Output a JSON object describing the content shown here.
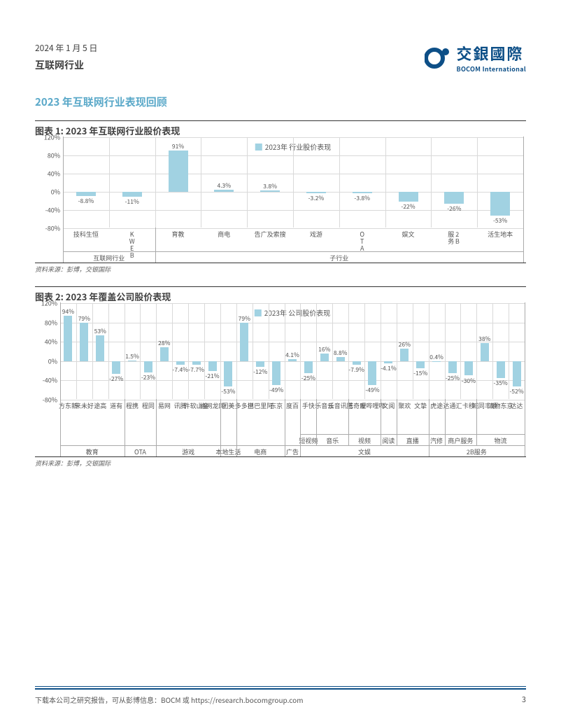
{
  "header": {
    "date": "2024 年 1 月 5 日",
    "industry": "互联网行业",
    "logo_cn": "交銀國際",
    "logo_en": "BOCOM International"
  },
  "section_heading": "2023 年互联网行业表现回顾",
  "chart1": {
    "title": "图表 1: 2023 年互联网行业股价表现",
    "legend": "2023年 行业股价表现",
    "source": "资料来源：彭博，交银国际",
    "ymin": -80,
    "ymax": 120,
    "ystep": 40,
    "y_ticks": [
      "120%",
      "80%",
      "40%",
      "0%",
      "-40%",
      "-80%"
    ],
    "bar_color": "#a1d2e2",
    "grid_color": "#d9d9d9",
    "categories": [
      "恒生科技",
      "KWEB",
      "教育",
      "电商",
      "搜索及广告",
      "游戏",
      "OTA",
      "文娱",
      "2B服务",
      "本地生活"
    ],
    "values": [
      -8.8,
      -11,
      91,
      4.3,
      3.8,
      -3.2,
      -3.8,
      -22,
      -26,
      -53
    ],
    "labels": [
      "-8.8%",
      "-11%",
      "91%",
      "4.3%",
      "3.8%",
      "-3.2%",
      "-3.8%",
      "-22%",
      "-26%",
      "-53%"
    ],
    "groups": [
      {
        "label": "互联网行业",
        "start": 0,
        "end": 2
      },
      {
        "label": "子行业",
        "start": 2,
        "end": 10
      }
    ]
  },
  "chart2": {
    "title": "图表 2: 2023 年覆盖公司股价表现",
    "legend": "2023年 公司股价表现",
    "source": "资料来源：彭博，交银国际",
    "ymin": -80,
    "ymax": 120,
    "ystep": 40,
    "y_ticks": [
      "120%",
      "80%",
      "40%",
      "0%",
      "-40%",
      "-80%"
    ],
    "bar_color": "#a1d2e2",
    "grid_color": "#d9d9d9",
    "categories": [
      "新东方",
      "好未来",
      "高途",
      "有道",
      "携程",
      "同程",
      "网易",
      "腾讯",
      "金山软件",
      "网龙网络",
      "美团",
      "拼多多",
      "阿里巴巴",
      "京东",
      "百度",
      "快手",
      "云音乐",
      "腾讯音乐",
      "爱奇艺",
      "哔哩哔哩",
      "阅文",
      "欢聚",
      "挚文",
      "途虎",
      "汇通达",
      "移卡",
      "顺丰同城",
      "京东物流",
      "达达"
    ],
    "values": [
      94,
      79,
      53,
      -27,
      1.5,
      -23,
      28,
      -7.4,
      -7.7,
      -21,
      -53,
      79,
      -12,
      -49,
      4.1,
      -25,
      16,
      8.8,
      -7.9,
      -49,
      -4.1,
      26,
      -15,
      0.4,
      -25,
      -30,
      38,
      -35,
      -52
    ],
    "labels": [
      "94%",
      "79%",
      "53%",
      "-27%",
      "1.5%",
      "-23%",
      "28%",
      "-7.4%",
      "-7.7%",
      "-21%",
      "-53%",
      "79%",
      "-12%",
      "-49%",
      "4.1%",
      "-25%",
      "16%",
      "8.8%",
      "-7.9%",
      "-49%",
      "-4.1%",
      "26%",
      "-15%",
      "0.4%",
      "-25%",
      "-30%",
      "38%",
      "-35%",
      "-52%"
    ],
    "subgroups": [
      {
        "label": "短视频",
        "start": 15,
        "end": 16
      },
      {
        "label": "音乐",
        "start": 16,
        "end": 18
      },
      {
        "label": "视频",
        "start": 18,
        "end": 20
      },
      {
        "label": "阅读",
        "start": 20,
        "end": 21
      },
      {
        "label": "直播",
        "start": 21,
        "end": 23
      },
      {
        "label": "汽修",
        "start": 23,
        "end": 24
      },
      {
        "label": "商户服务",
        "start": 24,
        "end": 26
      },
      {
        "label": "物流",
        "start": 26,
        "end": 29
      }
    ],
    "groups": [
      {
        "label": "教育",
        "start": 0,
        "end": 4
      },
      {
        "label": "OTA",
        "start": 4,
        "end": 6
      },
      {
        "label": "游戏",
        "start": 6,
        "end": 10
      },
      {
        "label": "本地生活",
        "start": 10,
        "end": 11
      },
      {
        "label": "电商",
        "start": 11,
        "end": 14
      },
      {
        "label": "广告",
        "start": 14,
        "end": 15
      },
      {
        "label": "文娱",
        "start": 15,
        "end": 23
      },
      {
        "label": "2B服务",
        "start": 23,
        "end": 29
      }
    ]
  },
  "footer": {
    "text": "下载本公司之研究报告，可从彭博信息：BOCM 或 https://research.bocomgroup.com",
    "page": "3"
  }
}
